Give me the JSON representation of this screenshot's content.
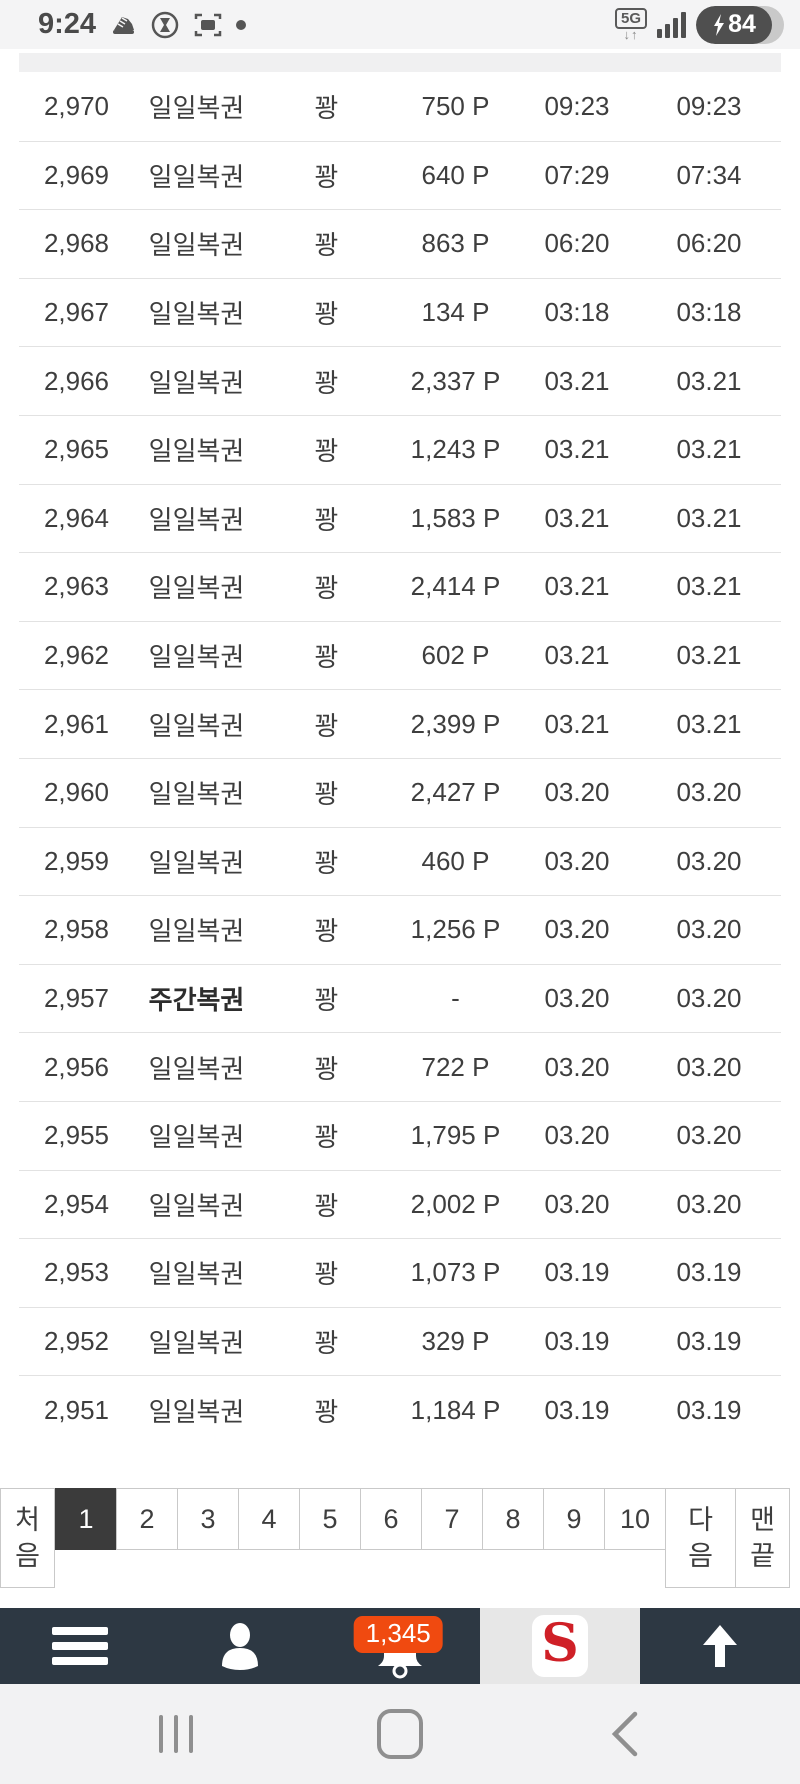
{
  "status_bar": {
    "time": "9:24",
    "network_label": "5G",
    "network_arrows": "↓↑",
    "battery_percent": "84"
  },
  "table": {
    "rows": [
      {
        "no": "2,970",
        "type": "일일복권",
        "result": "꽝",
        "points": "750 P",
        "date1": "09:23",
        "date2": "09:23",
        "bold": false
      },
      {
        "no": "2,969",
        "type": "일일복권",
        "result": "꽝",
        "points": "640 P",
        "date1": "07:29",
        "date2": "07:34",
        "bold": false
      },
      {
        "no": "2,968",
        "type": "일일복권",
        "result": "꽝",
        "points": "863 P",
        "date1": "06:20",
        "date2": "06:20",
        "bold": false
      },
      {
        "no": "2,967",
        "type": "일일복권",
        "result": "꽝",
        "points": "134 P",
        "date1": "03:18",
        "date2": "03:18",
        "bold": false
      },
      {
        "no": "2,966",
        "type": "일일복권",
        "result": "꽝",
        "points": "2,337 P",
        "date1": "03.21",
        "date2": "03.21",
        "bold": false
      },
      {
        "no": "2,965",
        "type": "일일복권",
        "result": "꽝",
        "points": "1,243 P",
        "date1": "03.21",
        "date2": "03.21",
        "bold": false
      },
      {
        "no": "2,964",
        "type": "일일복권",
        "result": "꽝",
        "points": "1,583 P",
        "date1": "03.21",
        "date2": "03.21",
        "bold": false
      },
      {
        "no": "2,963",
        "type": "일일복권",
        "result": "꽝",
        "points": "2,414 P",
        "date1": "03.21",
        "date2": "03.21",
        "bold": false
      },
      {
        "no": "2,962",
        "type": "일일복권",
        "result": "꽝",
        "points": "602 P",
        "date1": "03.21",
        "date2": "03.21",
        "bold": false
      },
      {
        "no": "2,961",
        "type": "일일복권",
        "result": "꽝",
        "points": "2,399 P",
        "date1": "03.21",
        "date2": "03.21",
        "bold": false
      },
      {
        "no": "2,960",
        "type": "일일복권",
        "result": "꽝",
        "points": "2,427 P",
        "date1": "03.20",
        "date2": "03.20",
        "bold": false
      },
      {
        "no": "2,959",
        "type": "일일복권",
        "result": "꽝",
        "points": "460 P",
        "date1": "03.20",
        "date2": "03.20",
        "bold": false
      },
      {
        "no": "2,958",
        "type": "일일복권",
        "result": "꽝",
        "points": "1,256 P",
        "date1": "03.20",
        "date2": "03.20",
        "bold": false
      },
      {
        "no": "2,957",
        "type": "주간복권",
        "result": "꽝",
        "points": "-",
        "date1": "03.20",
        "date2": "03.20",
        "bold": true
      },
      {
        "no": "2,956",
        "type": "일일복권",
        "result": "꽝",
        "points": "722 P",
        "date1": "03.20",
        "date2": "03.20",
        "bold": false
      },
      {
        "no": "2,955",
        "type": "일일복권",
        "result": "꽝",
        "points": "1,795 P",
        "date1": "03.20",
        "date2": "03.20",
        "bold": false
      },
      {
        "no": "2,954",
        "type": "일일복권",
        "result": "꽝",
        "points": "2,002 P",
        "date1": "03.20",
        "date2": "03.20",
        "bold": false
      },
      {
        "no": "2,953",
        "type": "일일복권",
        "result": "꽝",
        "points": "1,073 P",
        "date1": "03.19",
        "date2": "03.19",
        "bold": false
      },
      {
        "no": "2,952",
        "type": "일일복권",
        "result": "꽝",
        "points": "329 P",
        "date1": "03.19",
        "date2": "03.19",
        "bold": false
      },
      {
        "no": "2,951",
        "type": "일일복권",
        "result": "꽝",
        "points": "1,184 P",
        "date1": "03.19",
        "date2": "03.19",
        "bold": false
      }
    ]
  },
  "pagination": {
    "first_label": "처음",
    "pages": [
      "1",
      "2",
      "3",
      "4",
      "5",
      "6",
      "7",
      "8",
      "9",
      "10"
    ],
    "active_page": "1",
    "next_label": "다음",
    "last_label": "맨끝"
  },
  "toolbar": {
    "notification_count": "1,345",
    "logo_letter": "S"
  },
  "colors": {
    "badge_orange": "#f04a10",
    "toolbar_bg": "#2d3843",
    "active_page_bg": "#3b3b3b",
    "logo_red": "#cf2027"
  }
}
